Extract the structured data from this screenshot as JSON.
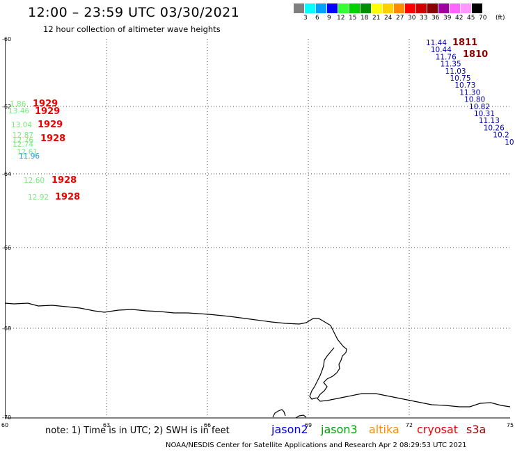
{
  "header": {
    "title": "12:00 – 23:59 UTC 03/30/2021",
    "subtitle": "12 hour collection of altimeter wave heights"
  },
  "legend": {
    "unit": "(ft)",
    "bins": [
      {
        "label": "3",
        "color": "#7f7f7f"
      },
      {
        "label": "6",
        "color": "#00ffff"
      },
      {
        "label": "9",
        "color": "#00a0ff"
      },
      {
        "label": "12",
        "color": "#0000ff"
      },
      {
        "label": "15",
        "color": "#33ff33"
      },
      {
        "label": "18",
        "color": "#00d000"
      },
      {
        "label": "21",
        "color": "#008f00"
      },
      {
        "label": "24",
        "color": "#ffff00"
      },
      {
        "label": "27",
        "color": "#ffd000"
      },
      {
        "label": "30",
        "color": "#ff8c00"
      },
      {
        "label": "33",
        "color": "#ff0000"
      },
      {
        "label": "36",
        "color": "#d00000"
      },
      {
        "label": "39",
        "color": "#8b0000"
      },
      {
        "label": "42",
        "color": "#a000a0"
      },
      {
        "label": "45",
        "color": "#ff66ff"
      },
      {
        "label": "70",
        "color": "#ff99ff"
      },
      {
        "label": "",
        "color": "#000000"
      }
    ]
  },
  "map": {
    "lat_labels": [
      "-60",
      "-62",
      "-64",
      "-66",
      "-68",
      "-70"
    ],
    "lon_labels": [
      "60",
      "63",
      "66",
      "69",
      "72",
      "75"
    ],
    "observations_left": [
      {
        "value": "1.86",
        "color": "#77ee77"
      },
      {
        "value": "13.46",
        "color": "#77ee77"
      },
      {
        "value": "13.04",
        "color": "#77ee77"
      },
      {
        "value": "12.87",
        "color": "#77ee77"
      },
      {
        "value": "12.76",
        "color": "#77ee77"
      },
      {
        "value": "12.74",
        "color": "#77ee77"
      },
      {
        "value": "12.61",
        "color": "#77ee77"
      },
      {
        "value": "11.96",
        "color": "#1a9fdf"
      },
      {
        "value": "12.60",
        "color": "#77ee77"
      },
      {
        "value": "12.92",
        "color": "#77ee77"
      }
    ],
    "times_left": [
      {
        "value": "1929"
      },
      {
        "value": "1929"
      },
      {
        "value": "1929"
      },
      {
        "value": "1928"
      },
      {
        "value": "1928"
      },
      {
        "value": "1928"
      }
    ],
    "observations_right": [
      "11.44",
      "10.44",
      "11.76",
      "11.35",
      "11.03",
      "10.75",
      "10.73",
      "11.30",
      "10.80",
      "10.82",
      "10.31",
      "11.13",
      "10.26",
      "10.2",
      "10"
    ],
    "times_right": [
      {
        "value": "1811"
      },
      {
        "value": "1810"
      }
    ]
  },
  "footer": {
    "note": "note: 1) Time is in UTC; 2) SWH is in feet",
    "satellites": [
      {
        "name": "jason2",
        "color": "#0000ee"
      },
      {
        "name": "jason3",
        "color": "#00a000"
      },
      {
        "name": "altika",
        "color": "#ff8c00"
      },
      {
        "name": "cryosat",
        "color": "#ee0000"
      },
      {
        "name": "s3a",
        "color": "#a00000"
      }
    ],
    "credit": "NOAA/NESDIS Center for Satellite Applications and Research    Apr  2 08:29:53 UTC 2021"
  }
}
